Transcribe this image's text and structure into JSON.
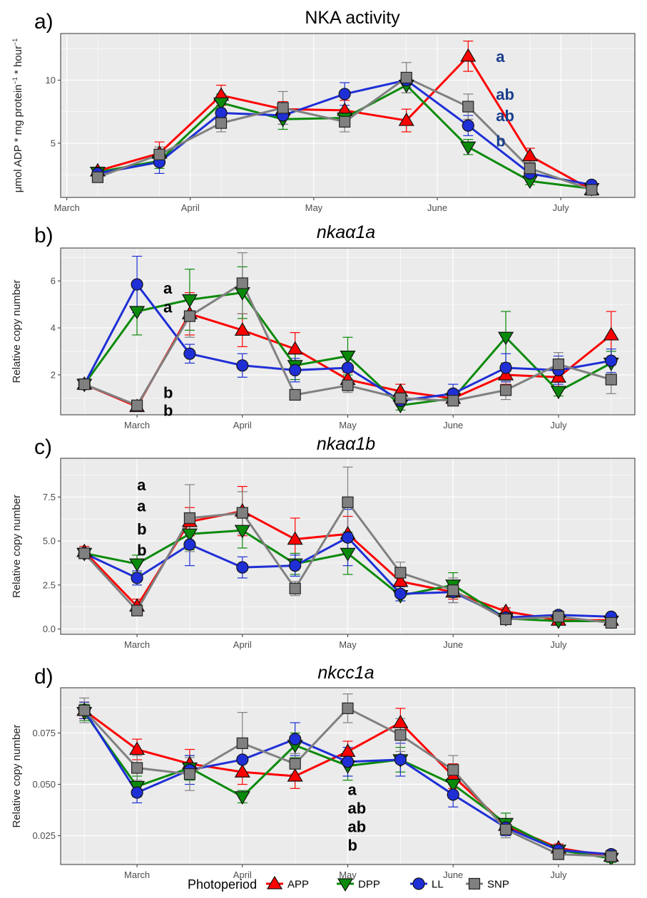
{
  "colors": {
    "APP": "#ff0000",
    "DPP": "#0a8a0a",
    "LL": "#1f2fd6",
    "SNP": "#808080"
  },
  "legend": {
    "title": "Photoperiod",
    "items": [
      "APP",
      "DPP",
      "LL",
      "SNP"
    ]
  },
  "chart_data": [
    {
      "type": "line",
      "letter": "a)",
      "title": "NKA activity",
      "italic": false,
      "ylabel": "μmol ADP * mg protein−1 * hour−1",
      "ylim": [
        0.7,
        13.7
      ],
      "yticks": [
        5,
        10
      ],
      "ytick_labels": [
        "5",
        "10"
      ],
      "x": [
        1,
        2,
        3,
        4,
        5,
        6,
        7,
        8,
        9
      ],
      "xtick_positions": [
        1.5,
        3.5,
        5.5,
        7.5,
        9.5
      ],
      "xtick_labels": [
        "March",
        "April",
        "May",
        "June",
        "July"
      ],
      "xlim": [
        0.55,
        9.65
      ],
      "grid": true,
      "series": [
        {
          "name": "APP",
          "x": [
            2,
            3,
            4,
            5,
            6,
            7,
            8,
            9,
            10
          ],
          "values": [
            2.8,
            4.2,
            8.8,
            7.7,
            7.6,
            6.8,
            11.9,
            4.0,
            1.3
          ],
          "err": [
            0.3,
            0.9,
            0.8,
            0.6,
            0.8,
            0.9,
            1.2,
            0.6,
            0.2
          ]
        },
        {
          "name": "DPP",
          "x": [
            2,
            3,
            4,
            5,
            6,
            7,
            8,
            9,
            10
          ],
          "values": [
            2.7,
            3.6,
            8.2,
            6.9,
            7.0,
            9.6,
            4.7,
            2.0,
            1.4
          ],
          "err": [
            0.3,
            0.6,
            0.7,
            0.8,
            0.7,
            0.6,
            0.6,
            0.3,
            0.2
          ]
        },
        {
          "name": "LL",
          "x": [
            2,
            3,
            4,
            5,
            6,
            7,
            8,
            9,
            10
          ],
          "values": [
            2.6,
            3.5,
            7.4,
            7.2,
            8.9,
            10.0,
            6.4,
            2.6,
            1.7
          ],
          "err": [
            0.3,
            0.9,
            0.8,
            0.7,
            0.9,
            0.6,
            0.8,
            0.4,
            0.2
          ]
        },
        {
          "name": "SNP",
          "x": [
            2,
            3,
            4,
            5,
            6,
            7,
            8,
            9,
            10
          ],
          "values": [
            2.3,
            4.1,
            6.6,
            7.8,
            6.7,
            10.2,
            7.9,
            3.0,
            1.3
          ],
          "err": [
            0.3,
            0.6,
            0.7,
            1.3,
            0.8,
            1.2,
            1.0,
            0.5,
            0.2
          ]
        }
      ],
      "annotations": [
        {
          "text": "a",
          "x": 8.45,
          "y": 11.9,
          "color": "#1a3e8c"
        },
        {
          "text": "ab",
          "x": 8.45,
          "y": 8.9,
          "color": "#1a3e8c"
        },
        {
          "text": "ab",
          "x": 8.45,
          "y": 7.2,
          "color": "#1a3e8c"
        },
        {
          "text": "b",
          "x": 8.45,
          "y": 5.2,
          "color": "#1a3e8c"
        }
      ]
    },
    {
      "type": "line",
      "letter": "b)",
      "title": "nkaα1a",
      "italic": true,
      "ylabel": "Relative copy number",
      "ylim": [
        0.3,
        7.4
      ],
      "yticks": [
        2,
        4,
        6
      ],
      "ytick_labels": [
        "2",
        "4",
        "6"
      ],
      "x": [
        1,
        2,
        3,
        4,
        5,
        6,
        7,
        8,
        9,
        10
      ],
      "xtick_positions": [
        2,
        4,
        6,
        8,
        10
      ],
      "xtick_labels": [
        "March",
        "April",
        "May",
        "June",
        "July"
      ],
      "xlim": [
        0.55,
        11.45
      ],
      "grid": true,
      "series": [
        {
          "name": "APP",
          "x": [
            1,
            2,
            3,
            4,
            5,
            6,
            7,
            8,
            9,
            10,
            11
          ],
          "values": [
            1.6,
            0.65,
            4.6,
            3.9,
            3.1,
            1.8,
            1.3,
            1.0,
            2.0,
            1.9,
            3.7
          ],
          "err": [
            0.15,
            0.1,
            0.9,
            0.7,
            0.7,
            0.3,
            0.3,
            0.2,
            0.4,
            0.4,
            1.0
          ]
        },
        {
          "name": "DPP",
          "x": [
            1,
            2,
            3,
            4,
            5,
            6,
            7,
            8,
            9,
            10,
            11
          ],
          "values": [
            1.6,
            4.7,
            5.2,
            5.5,
            2.4,
            2.8,
            0.7,
            1.0,
            3.6,
            1.3,
            2.5
          ],
          "err": [
            0.15,
            1.0,
            1.3,
            1.1,
            0.6,
            0.8,
            0.2,
            0.2,
            1.1,
            0.2,
            0.5
          ]
        },
        {
          "name": "LL",
          "x": [
            1,
            2,
            3,
            4,
            5,
            6,
            7,
            8,
            9,
            10,
            11
          ],
          "values": [
            1.6,
            5.85,
            2.9,
            2.4,
            2.2,
            2.3,
            0.9,
            1.2,
            2.3,
            2.2,
            2.6
          ],
          "err": [
            0.15,
            1.2,
            0.4,
            0.5,
            0.5,
            0.5,
            0.2,
            0.4,
            0.6,
            0.6,
            0.5
          ]
        },
        {
          "name": "SNP",
          "x": [
            1,
            2,
            3,
            4,
            5,
            6,
            7,
            8,
            9,
            10,
            11
          ],
          "values": [
            1.6,
            0.7,
            4.5,
            5.9,
            1.15,
            1.55,
            1.0,
            0.9,
            1.35,
            2.45,
            1.8
          ],
          "err": [
            0.15,
            0.1,
            0.9,
            1.3,
            0.2,
            0.3,
            0.2,
            0.2,
            0.4,
            0.5,
            0.6
          ]
        }
      ],
      "annotations": [
        {
          "text": "a",
          "x": 2.5,
          "y": 5.7,
          "color": "#000000"
        },
        {
          "text": "a",
          "x": 2.5,
          "y": 4.9,
          "color": "#000000"
        },
        {
          "text": "b",
          "x": 2.5,
          "y": 1.25,
          "color": "#000000"
        },
        {
          "text": "b",
          "x": 2.5,
          "y": 0.5,
          "color": "#000000"
        }
      ]
    },
    {
      "type": "line",
      "letter": "c)",
      "title": "nkaα1b",
      "italic": true,
      "ylabel": "Relative copy number",
      "ylim": [
        -0.3,
        9.7
      ],
      "yticks": [
        0,
        2.5,
        5,
        7.5
      ],
      "ytick_labels": [
        "0.0",
        "2.5",
        "5.0",
        "7.5"
      ],
      "x": [
        1,
        2,
        3,
        4,
        5,
        6,
        7,
        8,
        9,
        10
      ],
      "xtick_positions": [
        2,
        4,
        6,
        8,
        10
      ],
      "xtick_labels": [
        "March",
        "April",
        "May",
        "June",
        "July"
      ],
      "xlim": [
        0.55,
        11.45
      ],
      "grid": true,
      "series": [
        {
          "name": "APP",
          "x": [
            1,
            2,
            3,
            4,
            5,
            6,
            7,
            8,
            9,
            10,
            11
          ],
          "values": [
            4.4,
            1.3,
            6.1,
            6.7,
            5.1,
            5.4,
            2.7,
            2.1,
            1.0,
            0.5,
            0.5
          ],
          "err": [
            0.3,
            0.4,
            0.8,
            1.4,
            1.2,
            1.0,
            0.5,
            0.4,
            0.2,
            0.15,
            0.15
          ]
        },
        {
          "name": "DPP",
          "x": [
            1,
            2,
            3,
            4,
            5,
            6,
            7,
            8,
            9,
            10,
            11
          ],
          "values": [
            4.3,
            3.7,
            5.4,
            5.6,
            3.7,
            4.3,
            1.9,
            2.5,
            0.6,
            0.45,
            0.45
          ],
          "err": [
            0.3,
            0.5,
            0.9,
            1.0,
            0.6,
            1.2,
            0.3,
            0.7,
            0.2,
            0.15,
            0.15
          ]
        },
        {
          "name": "LL",
          "x": [
            1,
            2,
            3,
            4,
            5,
            6,
            7,
            8,
            9,
            10,
            11
          ],
          "values": [
            4.3,
            2.9,
            4.8,
            3.5,
            3.6,
            5.2,
            2.0,
            2.1,
            0.65,
            0.8,
            0.7
          ],
          "err": [
            0.3,
            0.4,
            1.2,
            0.6,
            0.6,
            1.6,
            0.4,
            0.6,
            0.2,
            0.2,
            0.15
          ]
        },
        {
          "name": "SNP",
          "x": [
            1,
            2,
            3,
            4,
            5,
            6,
            7,
            8,
            9,
            10,
            11
          ],
          "values": [
            4.3,
            1.05,
            6.3,
            6.6,
            2.3,
            7.2,
            3.2,
            2.2,
            0.55,
            0.7,
            0.35
          ],
          "err": [
            0.3,
            0.3,
            1.9,
            1.2,
            0.4,
            2.0,
            0.6,
            0.7,
            0.15,
            0.2,
            0.1
          ]
        }
      ],
      "annotations": [
        {
          "text": "a",
          "x": 2,
          "y": 8.2,
          "color": "#000000"
        },
        {
          "text": "a",
          "x": 2,
          "y": 7.0,
          "color": "#000000"
        },
        {
          "text": "b",
          "x": 2,
          "y": 5.7,
          "color": "#000000"
        },
        {
          "text": "b",
          "x": 2,
          "y": 4.5,
          "color": "#000000"
        }
      ]
    },
    {
      "type": "line",
      "letter": "d)",
      "title": "nkcc1a",
      "italic": true,
      "ylabel": "Relative copy number",
      "ylim": [
        0.011,
        0.097
      ],
      "yticks": [
        0.025,
        0.05,
        0.075
      ],
      "ytick_labels": [
        "0.025",
        "0.050",
        "0.075"
      ],
      "x": [
        1,
        2,
        3,
        4,
        5,
        6,
        7,
        8,
        9,
        10
      ],
      "xtick_positions": [
        2,
        4,
        6,
        8,
        10
      ],
      "xtick_labels": [
        "March",
        "April",
        "May",
        "June",
        "July"
      ],
      "xlim": [
        0.55,
        11.45
      ],
      "grid": true,
      "series": [
        {
          "name": "APP",
          "x": [
            1,
            2,
            3,
            4,
            5,
            6,
            7,
            8,
            9,
            10,
            11
          ],
          "values": [
            0.086,
            0.067,
            0.06,
            0.056,
            0.054,
            0.066,
            0.08,
            0.054,
            0.03,
            0.019,
            0.015
          ],
          "err": [
            0.004,
            0.005,
            0.007,
            0.006,
            0.006,
            0.005,
            0.007,
            0.006,
            0.003,
            0.002,
            0.002
          ]
        },
        {
          "name": "DPP",
          "x": [
            1,
            2,
            3,
            4,
            5,
            6,
            7,
            8,
            9,
            10,
            11
          ],
          "values": [
            0.085,
            0.049,
            0.058,
            0.044,
            0.069,
            0.059,
            0.062,
            0.05,
            0.031,
            0.018,
            0.014
          ],
          "err": [
            0.004,
            0.005,
            0.006,
            0.003,
            0.006,
            0.007,
            0.006,
            0.006,
            0.005,
            0.002,
            0.002
          ]
        },
        {
          "name": "LL",
          "x": [
            1,
            2,
            3,
            4,
            5,
            6,
            7,
            8,
            9,
            10,
            11
          ],
          "values": [
            0.086,
            0.046,
            0.057,
            0.062,
            0.072,
            0.061,
            0.062,
            0.045,
            0.029,
            0.018,
            0.016
          ],
          "err": [
            0.004,
            0.005,
            0.007,
            0.006,
            0.008,
            0.007,
            0.008,
            0.006,
            0.004,
            0.002,
            0.002
          ]
        },
        {
          "name": "SNP",
          "x": [
            1,
            2,
            3,
            4,
            5,
            6,
            7,
            8,
            9,
            10,
            11
          ],
          "values": [
            0.086,
            0.058,
            0.055,
            0.07,
            0.06,
            0.087,
            0.074,
            0.057,
            0.028,
            0.016,
            0.015
          ],
          "err": [
            0.006,
            0.006,
            0.008,
            0.015,
            0.005,
            0.007,
            0.008,
            0.007,
            0.004,
            0.002,
            0.002
          ]
        }
      ],
      "annotations": [
        {
          "text": "a",
          "x": 6,
          "y": 0.0475,
          "color": "#000000"
        },
        {
          "text": "ab",
          "x": 6,
          "y": 0.0385,
          "color": "#000000"
        },
        {
          "text": "ab",
          "x": 6,
          "y": 0.0295,
          "color": "#000000"
        },
        {
          "text": "b",
          "x": 6,
          "y": 0.0205,
          "color": "#000000"
        }
      ]
    }
  ]
}
